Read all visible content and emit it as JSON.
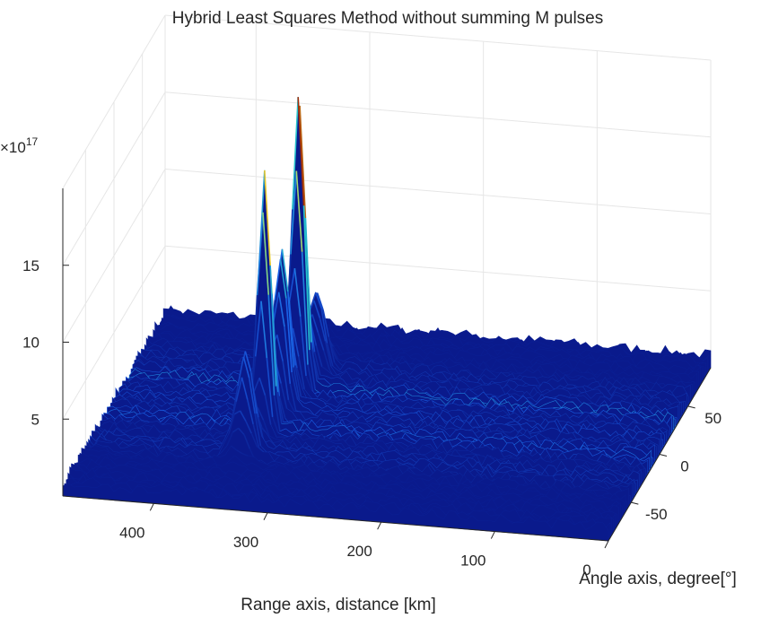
{
  "chart_data": {
    "type": "surface",
    "title": "Hybrid Least Squares Method without summing M pulses",
    "xlabel": "Range axis, distance [km]",
    "ylabel": "Angle axis, degree[°]",
    "zlabel": "",
    "z_exponent_label": "×10",
    "z_exponent_power": "17",
    "xlim": [
      0,
      480
    ],
    "ylim": [
      -90,
      90
    ],
    "zlim": [
      0,
      20
    ],
    "x_ticks": [
      {
        "value": 400,
        "label": "400"
      },
      {
        "value": 300,
        "label": "300"
      },
      {
        "value": 200,
        "label": "200"
      },
      {
        "value": 100,
        "label": "100"
      },
      {
        "value": 0,
        "label": "0"
      }
    ],
    "y_ticks": [
      {
        "value": -50,
        "label": "-50"
      },
      {
        "value": 0,
        "label": "0"
      },
      {
        "value": 50,
        "label": "50"
      }
    ],
    "z_ticks": [
      {
        "value": 5,
        "label": "5"
      },
      {
        "value": 10,
        "label": "10"
      },
      {
        "value": 15,
        "label": "15"
      }
    ],
    "grid": true,
    "colormap": "parula",
    "peaks": [
      {
        "range_km": 340,
        "angle_deg": -15,
        "height": 16.5,
        "width": 5
      },
      {
        "range_km": 330,
        "angle_deg": 25,
        "height": 19.5,
        "width": 5
      },
      {
        "range_km": 335,
        "angle_deg": 5,
        "height": 10.5,
        "width": 6
      },
      {
        "range_km": 345,
        "angle_deg": -40,
        "height": 6,
        "width": 7
      },
      {
        "range_km": 325,
        "angle_deg": 45,
        "height": 5,
        "width": 7
      }
    ],
    "noise_floor": 1.2,
    "colors": {
      "surface_low": "#0a1a8c",
      "surface_mid": "#1a60e6",
      "surface_high": "#f5e633",
      "peak_top": "#8b0000",
      "axis": "#262626",
      "grid": "#e6e6e6"
    }
  }
}
